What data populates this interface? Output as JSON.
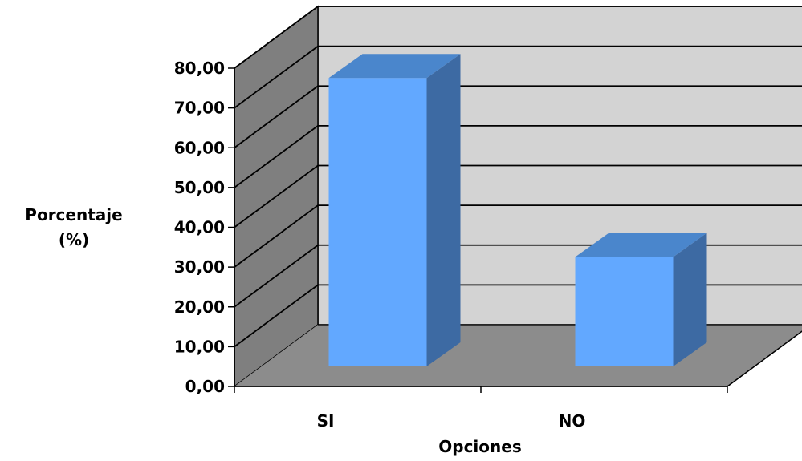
{
  "chart_data": {
    "type": "bar",
    "style": "3d-column",
    "categories": [
      "SI",
      "NO"
    ],
    "values": [
      72.5,
      27.5
    ],
    "ylabel_lines": [
      "Porcentaje",
      "(%)"
    ],
    "xlabel": "Opciones",
    "ylim": [
      0,
      80
    ],
    "ytick_step": 10,
    "ytick_labels": [
      "0,00",
      "10,00",
      "20,00",
      "30,00",
      "40,00",
      "50,00",
      "60,00",
      "70,00",
      "80,00"
    ],
    "grid": true,
    "legend": "none",
    "colors": {
      "bar_front": "#62a8ff",
      "bar_top": "#4a86cc",
      "bar_side": "#3d6aa3",
      "back_wall": "#d3d3d3",
      "side_wall": "#7f7f7f",
      "floor": "#8c8c8c",
      "gridline": "#000000"
    }
  }
}
